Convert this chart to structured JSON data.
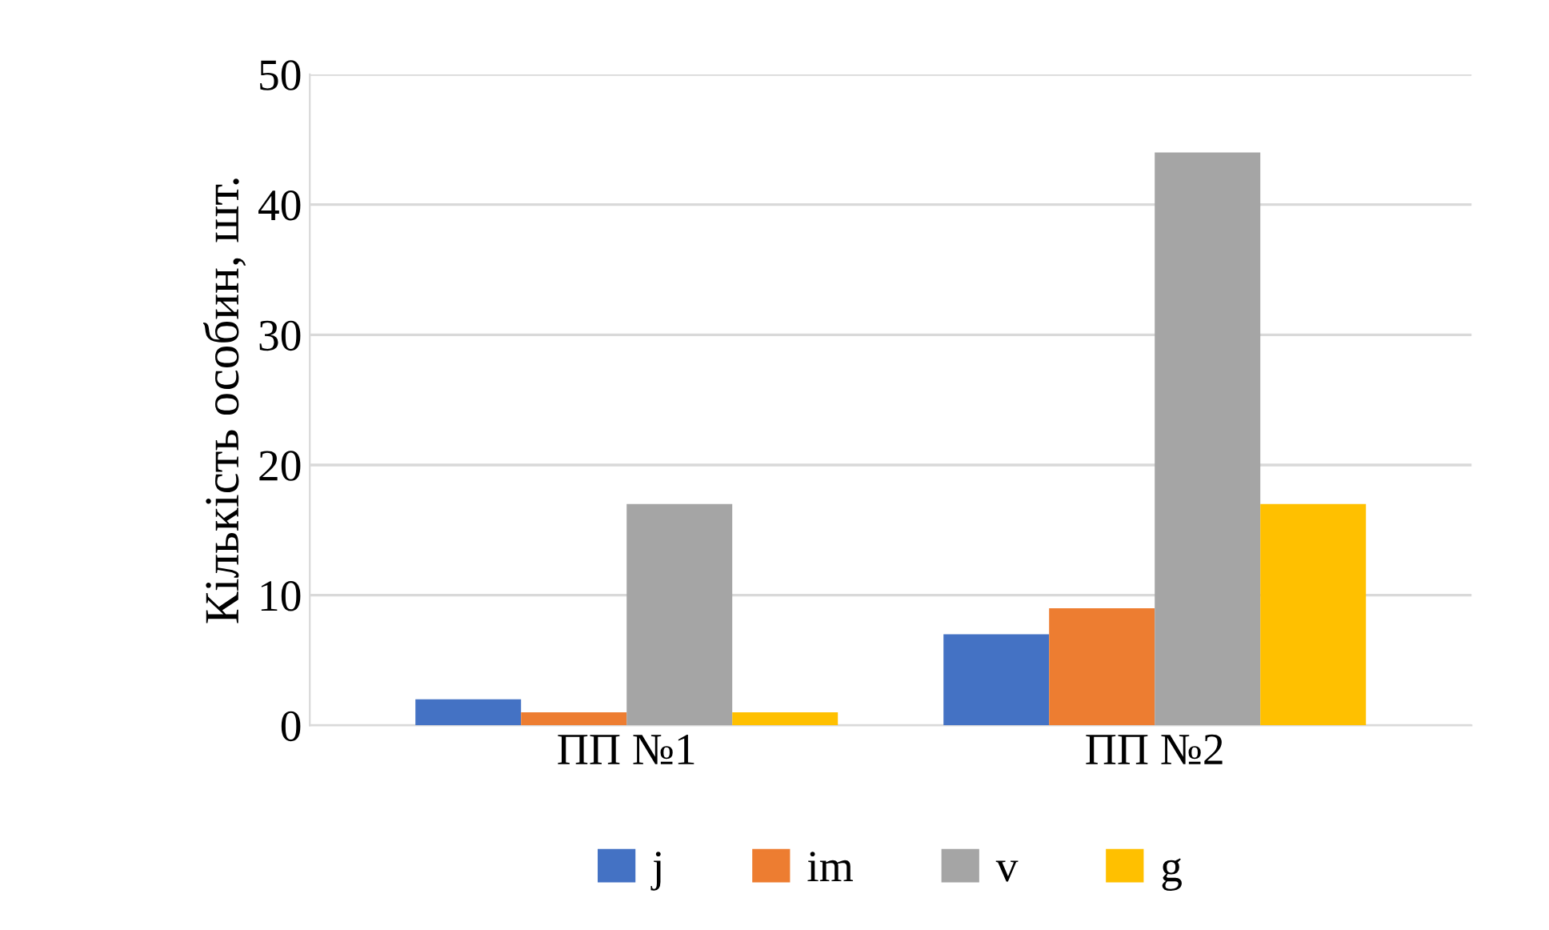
{
  "chart_data": {
    "type": "bar",
    "ylabel": "Кількість особин, шт.",
    "categories": [
      "ПП №1",
      "ПП №2"
    ],
    "series": [
      {
        "name": "j",
        "color": "#4472c4",
        "values": [
          2,
          7
        ]
      },
      {
        "name": "im",
        "color": "#ed7d31",
        "values": [
          1,
          9
        ]
      },
      {
        "name": "v",
        "color": "#a5a5a5",
        "values": [
          17,
          44
        ]
      },
      {
        "name": "g",
        "color": "#ffc000",
        "values": [
          1,
          17
        ]
      }
    ],
    "ylim": [
      0,
      50
    ],
    "yticks": [
      0,
      10,
      20,
      30,
      40,
      50
    ],
    "grid": "y",
    "legend": "bottom"
  }
}
